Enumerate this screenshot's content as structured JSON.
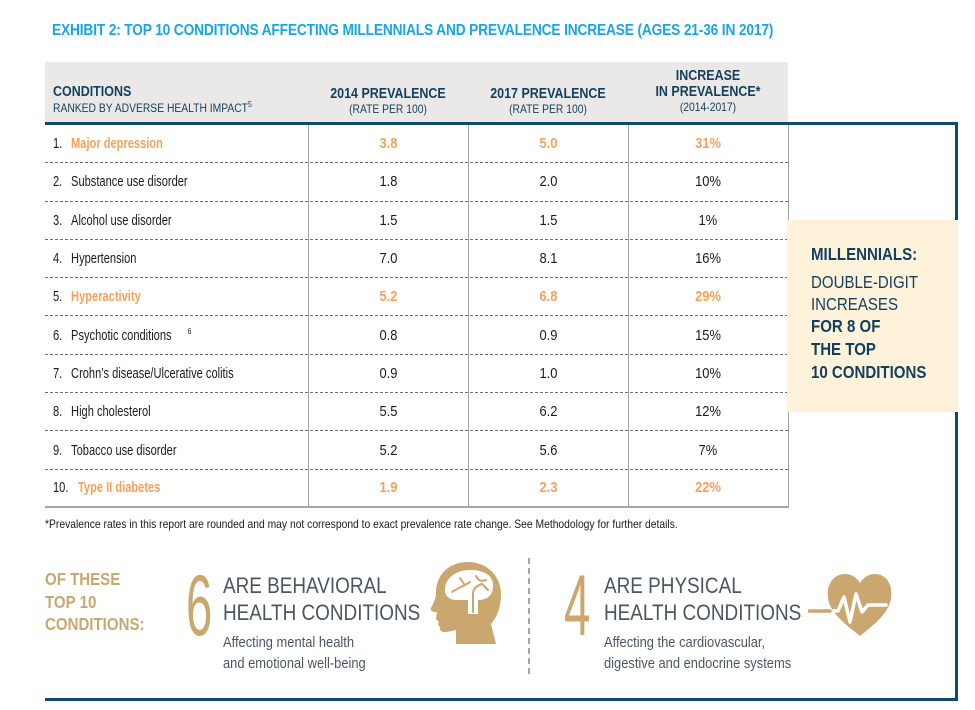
{
  "title": "EXHIBIT 2: TOP 10 CONDITIONS AFFECTING MILLENNIALS AND PREVALENCE INCREASE (AGES 21-36 IN 2017)",
  "table": {
    "headers": {
      "conditions": {
        "line1": "CONDITIONS",
        "line2": "RANKED BY ADVERSE HEALTH IMPACT",
        "sup": "5"
      },
      "prev2014": {
        "line1": "2014 PREVALENCE",
        "line2": "(RATE PER 100)"
      },
      "prev2017": {
        "line1": "2017 PREVALENCE",
        "line2": "(RATE PER 100)"
      },
      "increase": {
        "line1": "INCREASE",
        "line2": "IN PREVALENCE*",
        "line3": "(2014-2017)"
      }
    },
    "rows": [
      {
        "rank": "1.",
        "name": "Major depression",
        "sup": "",
        "v2014": "3.8",
        "v2017": "5.0",
        "increase": "31%",
        "highlight": true
      },
      {
        "rank": "2.",
        "name": "Substance use disorder",
        "sup": "",
        "v2014": "1.8",
        "v2017": "2.0",
        "increase": "10%",
        "highlight": false
      },
      {
        "rank": "3.",
        "name": "Alcohol use disorder",
        "sup": "",
        "v2014": "1.5",
        "v2017": "1.5",
        "increase": "1%",
        "highlight": false
      },
      {
        "rank": "4.",
        "name": "Hypertension",
        "sup": "",
        "v2014": "7.0",
        "v2017": "8.1",
        "increase": "16%",
        "highlight": false
      },
      {
        "rank": "5.",
        "name": "Hyperactivity",
        "sup": "",
        "v2014": "5.2",
        "v2017": "6.8",
        "increase": "29%",
        "highlight": true
      },
      {
        "rank": "6.",
        "name": "Psychotic conditions",
        "sup": "6",
        "v2014": "0.8",
        "v2017": "0.9",
        "increase": "15%",
        "highlight": false
      },
      {
        "rank": "7.",
        "name": "Crohn’s disease/Ulcerative colitis",
        "sup": "",
        "v2014": "0.9",
        "v2017": "1.0",
        "increase": "10%",
        "highlight": false
      },
      {
        "rank": "8.",
        "name": "High cholesterol",
        "sup": "",
        "v2014": "5.5",
        "v2017": "6.2",
        "increase": "12%",
        "highlight": false
      },
      {
        "rank": "9.",
        "name": "Tobacco use disorder",
        "sup": "",
        "v2014": "5.2",
        "v2017": "5.6",
        "increase": "7%",
        "highlight": false
      },
      {
        "rank": "10.",
        "name": "Type II diabetes",
        "sup": "",
        "v2014": "1.9",
        "v2017": "2.3",
        "increase": "22%",
        "highlight": true
      }
    ]
  },
  "callout": {
    "label": "MILLENNIALS:",
    "line1": "DOUBLE-DIGIT",
    "line2": "INCREASES",
    "line3": "FOR 8 OF",
    "line4": "THE TOP",
    "line5": "10 CONDITIONS"
  },
  "footnote": "*Prevalence rates in this report are rounded and may not correspond to exact prevalence rate change. See Methodology for further details.",
  "summary": {
    "intro": [
      "OF THESE",
      "TOP 10",
      "CONDITIONS:"
    ],
    "behavioral": {
      "count": "6",
      "head1": "ARE BEHAVIORAL",
      "head2": "HEALTH CONDITIONS",
      "sub1": "Affecting mental health",
      "sub2": "and emotional well-being",
      "icon": "brain-head-icon"
    },
    "physical": {
      "count": "4",
      "head1": "ARE PHYSICAL",
      "head2": "HEALTH CONDITIONS",
      "sub1": "Affecting the cardiovascular,",
      "sub2": "digestive and endocrine systems",
      "icon": "heart-pulse-icon"
    }
  },
  "colors": {
    "title_blue": "#1aa6e0",
    "navy": "#0e4a6a",
    "highlight_orange": "#f7a15a",
    "gold": "#c9a76f",
    "callout_bg": "#fef3da",
    "header_bg": "#ebe9e7"
  }
}
